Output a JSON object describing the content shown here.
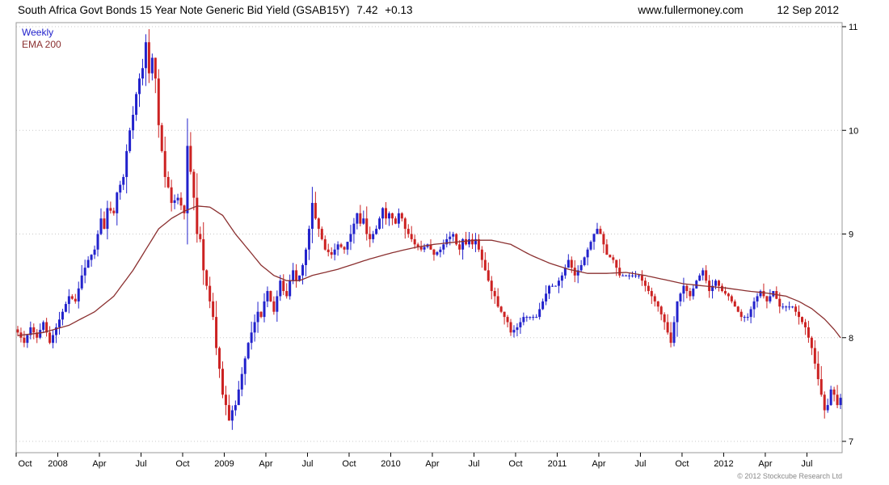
{
  "header": {
    "title": "South Africa Govt Bonds 15 Year Note Generic Bid Yield (GSAB15Y)",
    "price": "7.42",
    "change": "+0.13",
    "website": "www.fullermoney.com",
    "date": "12 Sep 2012"
  },
  "legend": {
    "series1": "Weekly",
    "series2": "EMA 200"
  },
  "footer": {
    "copyright": "© 2012 Stockcube Research Ltd"
  },
  "chart_data": {
    "type": "candlestick",
    "title": "South Africa Govt Bonds 15 Year Note Generic Bid Yield (GSAB15Y)",
    "frequency": "Weekly",
    "overlay": "EMA 200",
    "last_price": 7.42,
    "last_change": 0.13,
    "ylim": [
      6.9,
      11.05
    ],
    "y_ticks": [
      7,
      8,
      9,
      10,
      11
    ],
    "weeks_total": 258,
    "x_ticks": [
      {
        "label": "Oct",
        "week": 0
      },
      {
        "label": "2008",
        "week": 13
      },
      {
        "label": "Apr",
        "week": 26
      },
      {
        "label": "Jul",
        "week": 39
      },
      {
        "label": "Oct",
        "week": 52
      },
      {
        "label": "2009",
        "week": 65
      },
      {
        "label": "Apr",
        "week": 78
      },
      {
        "label": "Jul",
        "week": 91
      },
      {
        "label": "Oct",
        "week": 104
      },
      {
        "label": "2010",
        "week": 117
      },
      {
        "label": "Apr",
        "week": 130
      },
      {
        "label": "Jul",
        "week": 143
      },
      {
        "label": "Oct",
        "week": 156
      },
      {
        "label": "2011",
        "week": 169
      },
      {
        "label": "Apr",
        "week": 182
      },
      {
        "label": "Jul",
        "week": 195
      },
      {
        "label": "Oct",
        "week": 208
      },
      {
        "label": "2012",
        "week": 221
      },
      {
        "label": "Apr",
        "week": 234
      },
      {
        "label": "Jul",
        "week": 247
      }
    ],
    "up_color": "#2222cc",
    "down_color": "#cc2222",
    "ema_color": "#8b3030",
    "grid_color": "#c8c8c8",
    "border_color": "#999999",
    "noise_seed": 11,
    "close_keypoints": [
      [
        0,
        8.05
      ],
      [
        2,
        7.95
      ],
      [
        4,
        8.1
      ],
      [
        6,
        8.0
      ],
      [
        8,
        8.15
      ],
      [
        10,
        7.95
      ],
      [
        12,
        8.1
      ],
      [
        14,
        8.25
      ],
      [
        16,
        8.4
      ],
      [
        18,
        8.35
      ],
      [
        20,
        8.6
      ],
      [
        22,
        8.75
      ],
      [
        24,
        8.85
      ],
      [
        26,
        9.15
      ],
      [
        27,
        9.05
      ],
      [
        28,
        9.25
      ],
      [
        30,
        9.2
      ],
      [
        31,
        9.4
      ],
      [
        33,
        9.55
      ],
      [
        34,
        9.8
      ],
      [
        35,
        10.0
      ],
      [
        36,
        10.15
      ],
      [
        37,
        10.35
      ],
      [
        38,
        10.5
      ],
      [
        39,
        10.6
      ],
      [
        40,
        10.85
      ],
      [
        41,
        10.55
      ],
      [
        42,
        10.7
      ],
      [
        43,
        10.5
      ],
      [
        44,
        10.05
      ],
      [
        45,
        9.8
      ],
      [
        46,
        9.55
      ],
      [
        47,
        9.45
      ],
      [
        48,
        9.3
      ],
      [
        50,
        9.35
      ],
      [
        52,
        9.2
      ],
      [
        53,
        9.85
      ],
      [
        54,
        9.6
      ],
      [
        55,
        9.35
      ],
      [
        56,
        9.0
      ],
      [
        57,
        8.95
      ],
      [
        58,
        8.65
      ],
      [
        59,
        8.5
      ],
      [
        60,
        8.35
      ],
      [
        61,
        8.2
      ],
      [
        62,
        7.9
      ],
      [
        63,
        7.7
      ],
      [
        64,
        7.45
      ],
      [
        65,
        7.35
      ],
      [
        66,
        7.2
      ],
      [
        67,
        7.3
      ],
      [
        68,
        7.35
      ],
      [
        69,
        7.5
      ],
      [
        70,
        7.65
      ],
      [
        71,
        7.8
      ],
      [
        72,
        7.95
      ],
      [
        73,
        8.05
      ],
      [
        74,
        8.15
      ],
      [
        75,
        8.25
      ],
      [
        76,
        8.2
      ],
      [
        77,
        8.35
      ],
      [
        78,
        8.45
      ],
      [
        79,
        8.35
      ],
      [
        80,
        8.25
      ],
      [
        81,
        8.4
      ],
      [
        82,
        8.55
      ],
      [
        83,
        8.45
      ],
      [
        84,
        8.4
      ],
      [
        85,
        8.55
      ],
      [
        86,
        8.65
      ],
      [
        87,
        8.55
      ],
      [
        88,
        8.6
      ],
      [
        89,
        8.7
      ],
      [
        90,
        8.85
      ],
      [
        91,
        9.05
      ],
      [
        92,
        9.3
      ],
      [
        93,
        9.15
      ],
      [
        94,
        9.05
      ],
      [
        95,
        8.95
      ],
      [
        96,
        8.85
      ],
      [
        98,
        8.8
      ],
      [
        100,
        8.9
      ],
      [
        102,
        8.85
      ],
      [
        104,
        9.0
      ],
      [
        105,
        9.1
      ],
      [
        106,
        9.2
      ],
      [
        107,
        9.1
      ],
      [
        108,
        9.15
      ],
      [
        109,
        9.0
      ],
      [
        110,
        8.95
      ],
      [
        112,
        9.05
      ],
      [
        114,
        9.25
      ],
      [
        115,
        9.15
      ],
      [
        116,
        9.2
      ],
      [
        118,
        9.1
      ],
      [
        119,
        9.2
      ],
      [
        120,
        9.15
      ],
      [
        121,
        9.05
      ],
      [
        122,
        9.0
      ],
      [
        123,
        8.95
      ],
      [
        124,
        8.9
      ],
      [
        126,
        8.85
      ],
      [
        128,
        8.9
      ],
      [
        130,
        8.8
      ],
      [
        132,
        8.85
      ],
      [
        134,
        8.95
      ],
      [
        136,
        9.0
      ],
      [
        137,
        8.9
      ],
      [
        138,
        8.85
      ],
      [
        139,
        8.95
      ],
      [
        140,
        8.9
      ],
      [
        141,
        8.95
      ],
      [
        142,
        8.9
      ],
      [
        143,
        8.95
      ],
      [
        144,
        8.85
      ],
      [
        145,
        8.75
      ],
      [
        146,
        8.65
      ],
      [
        147,
        8.55
      ],
      [
        148,
        8.45
      ],
      [
        149,
        8.4
      ],
      [
        150,
        8.3
      ],
      [
        151,
        8.25
      ],
      [
        152,
        8.2
      ],
      [
        153,
        8.15
      ],
      [
        154,
        8.05
      ],
      [
        156,
        8.1
      ],
      [
        158,
        8.2
      ],
      [
        160,
        8.2
      ],
      [
        162,
        8.2
      ],
      [
        164,
        8.35
      ],
      [
        166,
        8.5
      ],
      [
        168,
        8.5
      ],
      [
        170,
        8.6
      ],
      [
        172,
        8.75
      ],
      [
        174,
        8.6
      ],
      [
        176,
        8.7
      ],
      [
        178,
        8.85
      ],
      [
        180,
        9.0
      ],
      [
        181,
        9.05
      ],
      [
        182,
        9.0
      ],
      [
        184,
        8.8
      ],
      [
        186,
        8.75
      ],
      [
        188,
        8.6
      ],
      [
        190,
        8.6
      ],
      [
        192,
        8.6
      ],
      [
        194,
        8.6
      ],
      [
        196,
        8.5
      ],
      [
        198,
        8.4
      ],
      [
        200,
        8.3
      ],
      [
        202,
        8.15
      ],
      [
        204,
        7.95
      ],
      [
        206,
        8.35
      ],
      [
        208,
        8.5
      ],
      [
        210,
        8.4
      ],
      [
        212,
        8.55
      ],
      [
        214,
        8.65
      ],
      [
        216,
        8.45
      ],
      [
        218,
        8.55
      ],
      [
        220,
        8.45
      ],
      [
        222,
        8.4
      ],
      [
        224,
        8.3
      ],
      [
        226,
        8.2
      ],
      [
        228,
        8.2
      ],
      [
        230,
        8.35
      ],
      [
        232,
        8.45
      ],
      [
        234,
        8.35
      ],
      [
        236,
        8.45
      ],
      [
        238,
        8.3
      ],
      [
        240,
        8.3
      ],
      [
        242,
        8.3
      ],
      [
        244,
        8.2
      ],
      [
        246,
        8.1
      ],
      [
        247,
        8.0
      ],
      [
        248,
        7.9
      ],
      [
        249,
        7.75
      ],
      [
        250,
        7.6
      ],
      [
        251,
        7.45
      ],
      [
        252,
        7.3
      ],
      [
        253,
        7.35
      ],
      [
        254,
        7.5
      ],
      [
        255,
        7.45
      ],
      [
        256,
        7.35
      ],
      [
        257,
        7.42
      ]
    ],
    "ema_keypoints": [
      [
        0,
        8.02
      ],
      [
        8,
        8.05
      ],
      [
        16,
        8.12
      ],
      [
        24,
        8.25
      ],
      [
        30,
        8.4
      ],
      [
        36,
        8.65
      ],
      [
        40,
        8.85
      ],
      [
        44,
        9.05
      ],
      [
        48,
        9.15
      ],
      [
        52,
        9.22
      ],
      [
        56,
        9.27
      ],
      [
        60,
        9.26
      ],
      [
        64,
        9.18
      ],
      [
        68,
        9.0
      ],
      [
        72,
        8.85
      ],
      [
        76,
        8.7
      ],
      [
        80,
        8.6
      ],
      [
        84,
        8.55
      ],
      [
        88,
        8.55
      ],
      [
        92,
        8.6
      ],
      [
        96,
        8.63
      ],
      [
        100,
        8.66
      ],
      [
        104,
        8.7
      ],
      [
        110,
        8.76
      ],
      [
        117,
        8.82
      ],
      [
        124,
        8.87
      ],
      [
        130,
        8.9
      ],
      [
        136,
        8.92
      ],
      [
        143,
        8.94
      ],
      [
        148,
        8.94
      ],
      [
        154,
        8.9
      ],
      [
        160,
        8.8
      ],
      [
        166,
        8.72
      ],
      [
        172,
        8.66
      ],
      [
        178,
        8.62
      ],
      [
        184,
        8.62
      ],
      [
        190,
        8.63
      ],
      [
        196,
        8.6
      ],
      [
        202,
        8.56
      ],
      [
        208,
        8.52
      ],
      [
        214,
        8.5
      ],
      [
        221,
        8.48
      ],
      [
        228,
        8.45
      ],
      [
        234,
        8.43
      ],
      [
        240,
        8.4
      ],
      [
        244,
        8.35
      ],
      [
        248,
        8.28
      ],
      [
        252,
        8.18
      ],
      [
        255,
        8.08
      ],
      [
        257,
        8.0
      ]
    ]
  }
}
